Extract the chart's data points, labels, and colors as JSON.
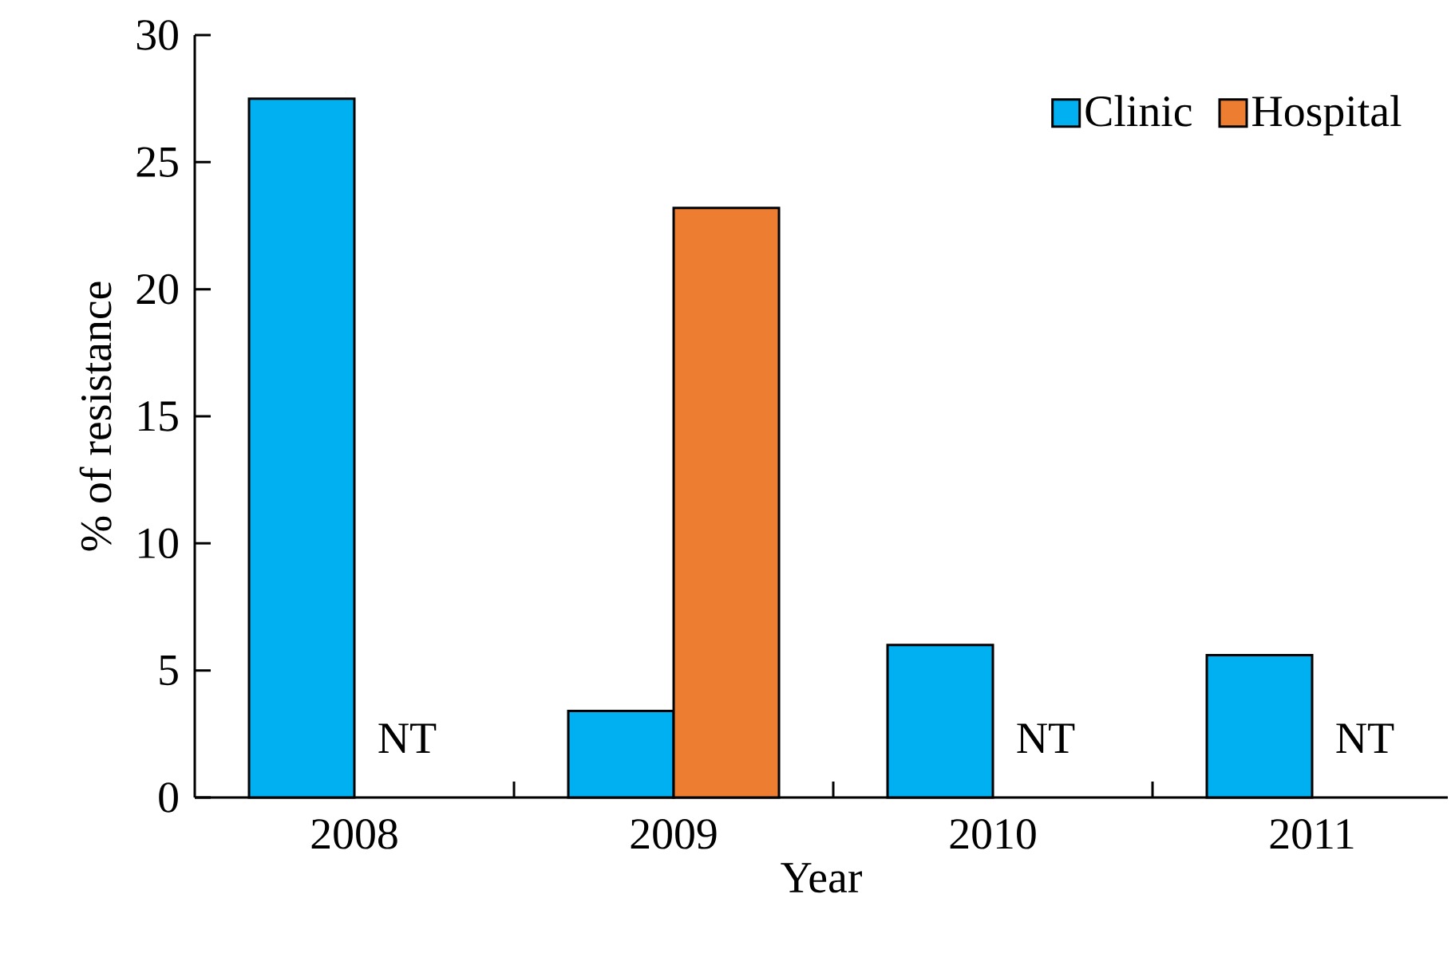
{
  "chart_data": {
    "type": "bar",
    "xlabel": "Year",
    "ylabel": "% of resistance",
    "categories": [
      "2008",
      "2009",
      "2010",
      "2011"
    ],
    "series": [
      {
        "name": "Clinic",
        "color": "#00b0f0",
        "values": [
          27.5,
          3.4,
          6.0,
          5.6
        ]
      },
      {
        "name": "Hospital",
        "color": "#ed7d31",
        "values": [
          null,
          23.2,
          null,
          null
        ],
        "value_labels": [
          "NT",
          null,
          "NT",
          "NT"
        ]
      }
    ],
    "ylim": [
      0,
      30
    ],
    "yticks": [
      0,
      5,
      10,
      15,
      20,
      25,
      30
    ],
    "legend": "top right"
  }
}
